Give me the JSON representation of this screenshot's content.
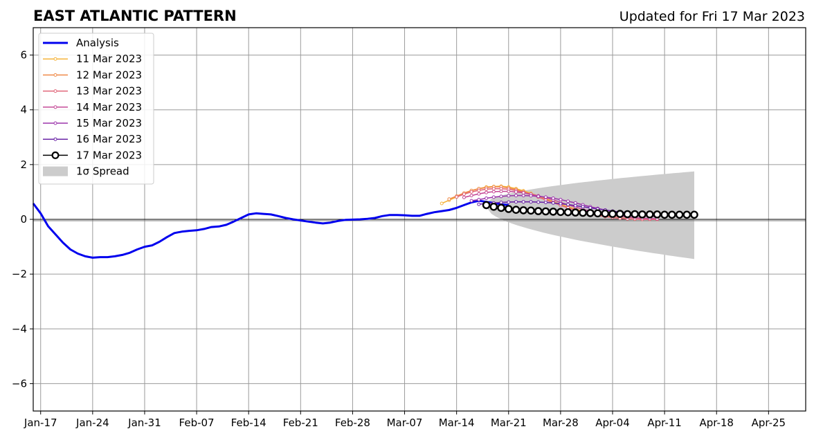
{
  "chart_data": {
    "type": "line",
    "title": "EAST ATLANTIC PATTERN",
    "subtitle": "Updated for Fri 17 Mar 2023",
    "xlabel": "",
    "ylabel": "",
    "x_range": [
      "2023-01-16",
      "2023-04-30"
    ],
    "ylim": [
      -7,
      7
    ],
    "y_ticks": [
      -6,
      -4,
      -2,
      0,
      2,
      4,
      6
    ],
    "y_tick_labels": [
      "−6",
      "−4",
      "−2",
      "0",
      "2",
      "4",
      "6"
    ],
    "x_ticks": [
      "2023-01-17",
      "2023-01-24",
      "2023-01-31",
      "2023-02-07",
      "2023-02-14",
      "2023-02-21",
      "2023-02-28",
      "2023-03-07",
      "2023-03-14",
      "2023-03-21",
      "2023-03-28",
      "2023-04-04",
      "2023-04-11",
      "2023-04-18",
      "2023-04-25"
    ],
    "x_tick_labels": [
      "Jan-17",
      "Jan-24",
      "Jan-31",
      "Feb-07",
      "Feb-14",
      "Feb-21",
      "Feb-28",
      "Mar-07",
      "Mar-14",
      "Mar-21",
      "Mar-28",
      "Apr-04",
      "Apr-11",
      "Apr-18",
      "Apr-25"
    ],
    "grid": true,
    "legend_position": "top-left",
    "analysis": {
      "name": "Analysis",
      "color": "#0000ee",
      "start_date": "2023-01-16",
      "values": [
        0.58,
        0.22,
        -0.25,
        -0.55,
        -0.85,
        -1.1,
        -1.25,
        -1.35,
        -1.4,
        -1.38,
        -1.38,
        -1.35,
        -1.3,
        -1.22,
        -1.1,
        -1.0,
        -0.95,
        -0.82,
        -0.65,
        -0.5,
        -0.45,
        -0.42,
        -0.4,
        -0.35,
        -0.28,
        -0.26,
        -0.2,
        -0.08,
        0.05,
        0.18,
        0.22,
        0.2,
        0.18,
        0.12,
        0.05,
        0.0,
        -0.04,
        -0.08,
        -0.12,
        -0.15,
        -0.12,
        -0.06,
        -0.02,
        -0.01,
        0.0,
        0.02,
        0.05,
        0.12,
        0.16,
        0.16,
        0.15,
        0.13,
        0.13,
        0.2,
        0.26,
        0.3,
        0.34,
        0.42,
        0.52,
        0.62,
        0.68,
        0.64,
        0.6,
        0.55,
        0.52
      ]
    },
    "forecasts": [
      {
        "name": "11 Mar 2023",
        "color": "#f5b33a",
        "start_date": "2023-03-12",
        "values": [
          0.58,
          0.7,
          0.82,
          0.95,
          1.05,
          1.12,
          1.18,
          1.2,
          1.21,
          1.18,
          1.12,
          1.04,
          0.95,
          0.85,
          0.75,
          0.65,
          0.55,
          0.46,
          0.38,
          0.3,
          0.23,
          0.17,
          0.12,
          0.08,
          0.05,
          0.03,
          0.01,
          0.0,
          0.0,
          0.0
        ]
      },
      {
        "name": "12 Mar 2023",
        "color": "#ef8a48",
        "start_date": "2023-03-13",
        "values": [
          0.74,
          0.85,
          0.96,
          1.05,
          1.12,
          1.16,
          1.19,
          1.19,
          1.15,
          1.09,
          1.01,
          0.92,
          0.82,
          0.72,
          0.62,
          0.52,
          0.43,
          0.35,
          0.27,
          0.2,
          0.15,
          0.1,
          0.07,
          0.04,
          0.02,
          0.01,
          0.0,
          0.0,
          0.0
        ]
      },
      {
        "name": "13 Mar 2023",
        "color": "#e06478",
        "start_date": "2023-03-14",
        "values": [
          0.82,
          0.92,
          1.0,
          1.06,
          1.1,
          1.12,
          1.12,
          1.1,
          1.05,
          0.98,
          0.9,
          0.81,
          0.71,
          0.61,
          0.51,
          0.42,
          0.34,
          0.26,
          0.2,
          0.14,
          0.1,
          0.07,
          0.04,
          0.02,
          0.01,
          0.0,
          0.0,
          0.0
        ]
      },
      {
        "name": "14 Mar 2023",
        "color": "#c54a97",
        "start_date": "2023-03-15",
        "values": [
          0.8,
          0.87,
          0.93,
          0.98,
          1.01,
          1.02,
          1.02,
          1.0,
          0.97,
          0.92,
          0.86,
          0.79,
          0.71,
          0.62,
          0.53,
          0.45,
          0.37,
          0.3,
          0.24,
          0.19,
          0.14,
          0.11,
          0.08,
          0.06,
          0.04,
          0.03,
          0.02
        ]
      },
      {
        "name": "15 Mar 2023",
        "color": "#9b34ab",
        "start_date": "2023-03-16",
        "values": [
          0.68,
          0.72,
          0.77,
          0.81,
          0.84,
          0.86,
          0.87,
          0.87,
          0.86,
          0.84,
          0.81,
          0.77,
          0.72,
          0.66,
          0.6,
          0.53,
          0.46,
          0.4,
          0.34,
          0.29,
          0.24,
          0.2,
          0.17,
          0.14,
          0.12,
          0.1
        ]
      },
      {
        "name": "16 Mar 2023",
        "color": "#6a24a6",
        "start_date": "2023-03-17",
        "values": [
          0.55,
          0.58,
          0.6,
          0.62,
          0.63,
          0.64,
          0.64,
          0.64,
          0.63,
          0.62,
          0.6,
          0.57,
          0.54,
          0.5,
          0.46,
          0.42,
          0.38,
          0.34,
          0.3,
          0.27,
          0.24,
          0.22,
          0.2,
          0.18,
          0.17
        ]
      }
    ],
    "current_forecast": {
      "name": "17 Mar 2023",
      "color": "#000000",
      "start_date": "2023-03-18",
      "values": [
        0.52,
        0.46,
        0.42,
        0.38,
        0.35,
        0.33,
        0.32,
        0.3,
        0.29,
        0.28,
        0.27,
        0.26,
        0.25,
        0.24,
        0.23,
        0.22,
        0.21,
        0.2,
        0.2,
        0.19,
        0.19,
        0.18,
        0.18,
        0.18,
        0.17,
        0.17,
        0.17,
        0.17,
        0.17
      ]
    },
    "spread": {
      "name": "1σ Spread",
      "color": "#cccccc",
      "start_date": "2023-03-18",
      "end_date": "2023-04-15",
      "upper_start": 0.6,
      "upper_end": 1.75,
      "lower_start": 0.45,
      "lower_end": -1.45
    }
  },
  "legend": {
    "entries": [
      {
        "label": "Analysis",
        "color": "#0000ee",
        "style": "thick-line"
      },
      {
        "label": "11 Mar 2023",
        "color": "#f5b33a",
        "style": "line-dot"
      },
      {
        "label": "12 Mar 2023",
        "color": "#ef8a48",
        "style": "line-dot"
      },
      {
        "label": "13 Mar 2023",
        "color": "#e06478",
        "style": "line-dot"
      },
      {
        "label": "14 Mar 2023",
        "color": "#c54a97",
        "style": "line-dot"
      },
      {
        "label": "15 Mar 2023",
        "color": "#9b34ab",
        "style": "line-dot"
      },
      {
        "label": "16 Mar 2023",
        "color": "#6a24a6",
        "style": "line-dot"
      },
      {
        "label": "17 Mar 2023",
        "color": "#000000",
        "style": "line-circle"
      },
      {
        "label": "1σ Spread",
        "color": "#cccccc",
        "style": "patch"
      }
    ]
  }
}
